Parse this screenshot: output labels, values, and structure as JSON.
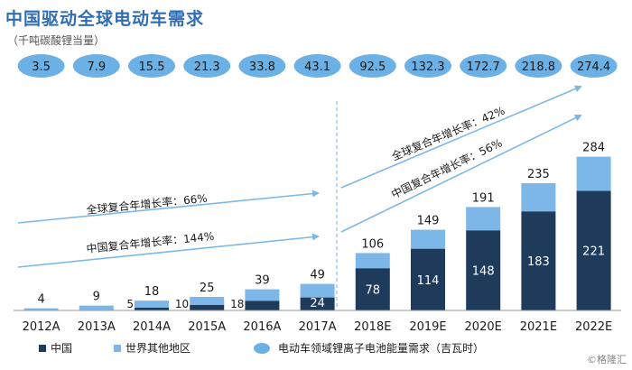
{
  "page": {
    "title": "中国驱动全球电动车需求",
    "subtitle": "（千吨碳酸锂当量）",
    "watermark": "©格隆汇"
  },
  "chart_data": {
    "type": "bar",
    "stacked": true,
    "categories": [
      "2012A",
      "2013A",
      "2014A",
      "2015A",
      "2016A",
      "2017A",
      "2018E",
      "2019E",
      "2020E",
      "2021E",
      "2022E"
    ],
    "series": [
      {
        "name": "中国",
        "color": "#1f3b5c",
        "values": [
          null,
          null,
          5,
          10,
          18,
          24,
          78,
          114,
          148,
          183,
          221
        ]
      },
      {
        "name": "世界其他地区",
        "color": "#7db7e8",
        "values": [
          4,
          9,
          13,
          15,
          21,
          25,
          28,
          35,
          43,
          52,
          63
        ]
      }
    ],
    "china_labels": [
      "",
      "",
      "5",
      "10",
      "18",
      "24",
      "78",
      "114",
      "148",
      "183",
      "221"
    ],
    "total_labels": [
      "4",
      "9",
      "18",
      "25",
      "39",
      "49",
      "106",
      "149",
      "191",
      "235",
      "284"
    ],
    "ev_demand_gwh": {
      "name": "电动车领域锂离子电池能量需求（吉瓦时）",
      "color": "#6cb1e6",
      "values": [
        "3.5",
        "7.9",
        "15.5",
        "21.3",
        "33.8",
        "43.1",
        "92.5",
        "132.3",
        "172.7",
        "218.8",
        "274.4"
      ]
    },
    "annotations": [
      {
        "group": "left",
        "text": "全球复合年增长率：66%"
      },
      {
        "group": "left",
        "text": "中国复合年增长率：144%"
      },
      {
        "group": "right",
        "text": "全球复合年增长率：42%"
      },
      {
        "group": "right",
        "text": "中国复合年增长率：56%"
      }
    ],
    "legend_position": "bottom",
    "grid": false,
    "ylim": [
      0,
      300
    ]
  }
}
